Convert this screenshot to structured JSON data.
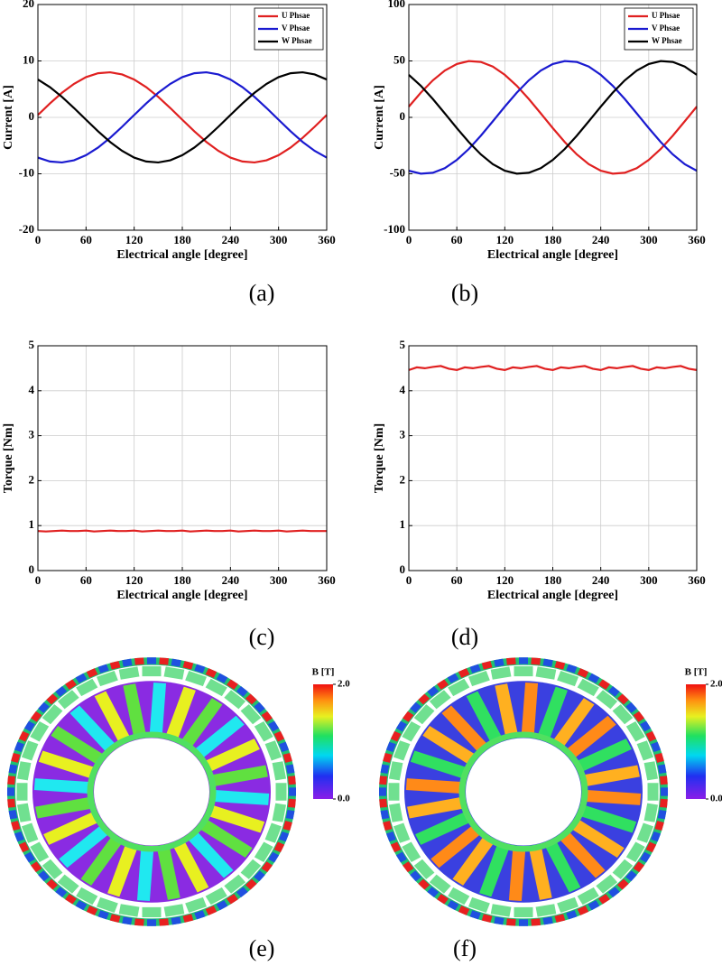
{
  "chart_data": [
    {
      "type": "line",
      "caption": "(a)",
      "xlabel": "Electrical angle [degree]",
      "ylabel": "Current [A]",
      "x": [
        0,
        15,
        30,
        45,
        60,
        75,
        90,
        105,
        120,
        135,
        150,
        165,
        180,
        195,
        210,
        225,
        240,
        255,
        270,
        285,
        300,
        315,
        330,
        345,
        360
      ],
      "series": [
        {
          "name": "U Phsae",
          "color": "#e02020",
          "values": [
            0.42,
            2.47,
            4.36,
            5.94,
            7.13,
            7.82,
            7.99,
            7.61,
            6.71,
            5.35,
            3.63,
            1.66,
            -0.42,
            -2.47,
            -4.36,
            -5.94,
            -7.13,
            -7.82,
            -7.99,
            -7.61,
            -6.71,
            -5.35,
            -3.63,
            -1.66,
            0.42
          ]
        },
        {
          "name": "V Phsae",
          "color": "#1a1ad0",
          "values": [
            -7.13,
            -7.82,
            -7.99,
            -7.61,
            -6.71,
            -5.35,
            -3.63,
            -1.66,
            0.42,
            2.47,
            4.36,
            5.94,
            7.13,
            7.82,
            7.99,
            7.61,
            6.71,
            5.35,
            3.63,
            1.66,
            -0.42,
            -2.47,
            -4.36,
            -5.94,
            -7.13
          ]
        },
        {
          "name": "W Phsae",
          "color": "#000000",
          "values": [
            6.71,
            5.35,
            3.63,
            1.66,
            -0.42,
            -2.47,
            -4.36,
            -5.94,
            -7.13,
            -7.82,
            -7.99,
            -7.61,
            -6.71,
            -5.35,
            -3.63,
            -1.66,
            0.42,
            2.47,
            4.36,
            5.94,
            7.13,
            7.82,
            7.99,
            7.61,
            6.71
          ]
        }
      ],
      "xlim": [
        0,
        360
      ],
      "xticks": [
        0,
        60,
        120,
        180,
        240,
        300,
        360
      ],
      "ylim": [
        -20,
        20
      ],
      "yticks": [
        -20,
        -10,
        0,
        10,
        20
      ],
      "grid": true,
      "legend": "upper-right"
    },
    {
      "type": "line",
      "caption": "(b)",
      "xlabel": "Electrical angle [degree]",
      "ylabel": "Current [A]",
      "x": [
        0,
        15,
        30,
        45,
        60,
        75,
        90,
        105,
        120,
        135,
        150,
        165,
        180,
        195,
        210,
        225,
        240,
        255,
        270,
        285,
        300,
        315,
        330,
        345,
        360
      ],
      "series": [
        {
          "name": "U Phsae",
          "color": "#e02020",
          "values": [
            9.5,
            21.9,
            32.8,
            41.5,
            47.3,
            49.9,
            49.1,
            45.0,
            37.7,
            28.0,
            16.3,
            3.5,
            -9.5,
            -21.9,
            -32.8,
            -41.5,
            -47.3,
            -49.9,
            -49.1,
            -45.0,
            -37.7,
            -28.0,
            -16.3,
            -3.5,
            9.5
          ]
        },
        {
          "name": "V Phsae",
          "color": "#1a1ad0",
          "values": [
            -47.3,
            -49.9,
            -49.1,
            -45.0,
            -37.7,
            -28.0,
            -16.3,
            -3.5,
            9.5,
            21.9,
            32.8,
            41.5,
            47.3,
            49.9,
            49.1,
            45.0,
            37.7,
            28.0,
            16.3,
            3.5,
            -9.5,
            -21.9,
            -32.8,
            -41.5,
            -47.3
          ]
        },
        {
          "name": "W Phsae",
          "color": "#000000",
          "values": [
            37.7,
            28.0,
            16.3,
            3.5,
            -9.5,
            -21.9,
            -32.8,
            -41.5,
            -47.3,
            -49.9,
            -49.1,
            -45.0,
            -37.7,
            -28.0,
            -16.3,
            -3.5,
            9.5,
            21.9,
            32.8,
            41.5,
            47.3,
            49.9,
            49.1,
            45.0,
            37.7
          ]
        }
      ],
      "xlim": [
        0,
        360
      ],
      "xticks": [
        0,
        60,
        120,
        180,
        240,
        300,
        360
      ],
      "ylim": [
        -100,
        100
      ],
      "yticks": [
        -100,
        -50,
        0,
        50,
        100
      ],
      "grid": true,
      "legend": "upper-right"
    },
    {
      "type": "line",
      "caption": "(c)",
      "xlabel": "Electrical angle [degree]",
      "ylabel": "Torque [Nm]",
      "x": [
        0,
        10,
        20,
        30,
        40,
        50,
        60,
        70,
        80,
        90,
        100,
        110,
        120,
        130,
        140,
        150,
        160,
        170,
        180,
        190,
        200,
        210,
        220,
        230,
        240,
        250,
        260,
        270,
        280,
        290,
        300,
        310,
        320,
        330,
        340,
        350,
        360
      ],
      "series": [
        {
          "color": "#e02020",
          "values": [
            0.88,
            0.87,
            0.88,
            0.89,
            0.88,
            0.88,
            0.89,
            0.87,
            0.88,
            0.89,
            0.88,
            0.88,
            0.89,
            0.87,
            0.88,
            0.89,
            0.88,
            0.88,
            0.89,
            0.87,
            0.88,
            0.89,
            0.88,
            0.88,
            0.89,
            0.87,
            0.88,
            0.89,
            0.88,
            0.88,
            0.89,
            0.87,
            0.88,
            0.89,
            0.88,
            0.88,
            0.88
          ]
        }
      ],
      "xlim": [
        0,
        360
      ],
      "xticks": [
        0,
        60,
        120,
        180,
        240,
        300,
        360
      ],
      "ylim": [
        0,
        5
      ],
      "yticks": [
        0,
        1,
        2,
        3,
        4,
        5
      ],
      "grid": true
    },
    {
      "type": "line",
      "caption": "(d)",
      "xlabel": "Electrical angle [degree]",
      "ylabel": "Torque [Nm]",
      "x": [
        0,
        10,
        20,
        30,
        40,
        50,
        60,
        70,
        80,
        90,
        100,
        110,
        120,
        130,
        140,
        150,
        160,
        170,
        180,
        190,
        200,
        210,
        220,
        230,
        240,
        250,
        260,
        270,
        280,
        290,
        300,
        310,
        320,
        330,
        340,
        350,
        360
      ],
      "series": [
        {
          "color": "#e02020",
          "values": [
            4.46,
            4.52,
            4.5,
            4.53,
            4.55,
            4.49,
            4.46,
            4.52,
            4.5,
            4.53,
            4.55,
            4.49,
            4.46,
            4.52,
            4.5,
            4.53,
            4.55,
            4.49,
            4.46,
            4.52,
            4.5,
            4.53,
            4.55,
            4.49,
            4.46,
            4.52,
            4.5,
            4.53,
            4.55,
            4.49,
            4.46,
            4.52,
            4.5,
            4.53,
            4.55,
            4.49,
            4.46
          ]
        }
      ],
      "xlim": [
        0,
        360
      ],
      "xticks": [
        0,
        60,
        120,
        180,
        240,
        300,
        360
      ],
      "ylim": [
        0,
        5
      ],
      "yticks": [
        0,
        1,
        2,
        3,
        4,
        5
      ],
      "grid": true
    }
  ],
  "field_plots": [
    {
      "caption": "(e)",
      "colorbar_title": "B [T]",
      "colorbar_ticks": [
        {
          "value": 2,
          "label": "2.0"
        },
        {
          "value": 0,
          "label": "0.0"
        }
      ]
    },
    {
      "caption": "(f)",
      "colorbar_title": "B [T]",
      "colorbar_ticks": [
        {
          "value": 2,
          "label": "2.0"
        },
        {
          "value": 0,
          "label": "0.0"
        }
      ]
    }
  ]
}
